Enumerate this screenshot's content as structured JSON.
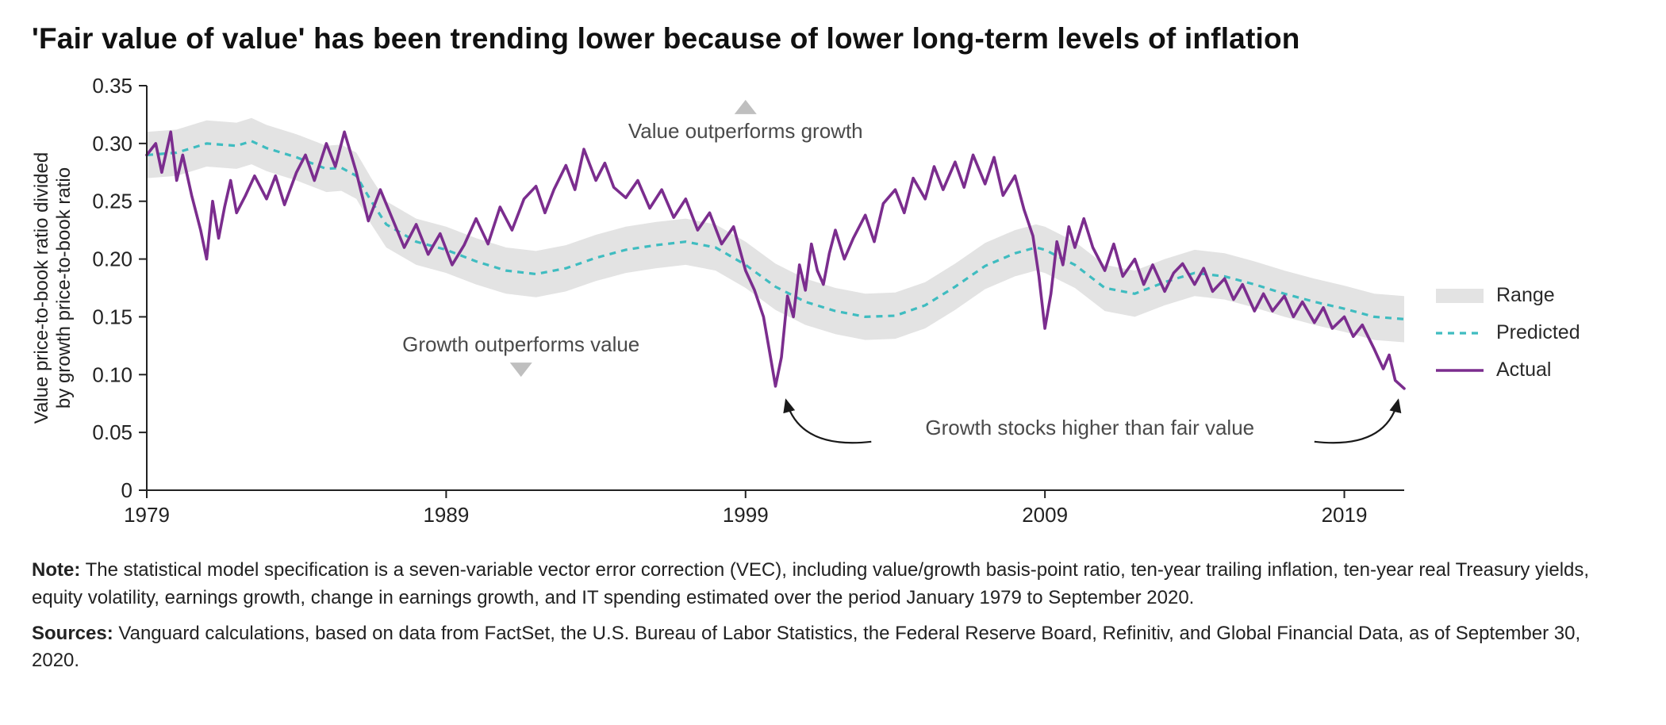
{
  "title": "'Fair value of value' has been trending lower because of lower long-term levels of inflation",
  "ylabel_line1": "Value price-to-book ratio divided",
  "ylabel_line2": "by growth price-to-book ratio",
  "annotations": {
    "top": "Value outperforms growth",
    "bottom": "Growth outperforms value",
    "callout": "Growth stocks higher than fair value"
  },
  "legend": {
    "range": "Range",
    "predicted": "Predicted",
    "actual": "Actual"
  },
  "note_lead": "Note:",
  "note_text": " The statistical model specification is a seven-variable vector error correction (VEC), including value/growth basis-point ratio, ten-year trailing inflation, ten-year real Treasury yields, equity volatility, earnings growth, change in earnings growth, and IT spending estimated over the period January 1979 to September 2020.",
  "sources_lead": "Sources:",
  "sources_text": " Vanguard calculations, based on data from FactSet, the U.S. Bureau of Labor Statistics, the Federal Reserve Board, Refinitiv, and Global Financial Data, as of September 30, 2020.",
  "chart": {
    "type": "line",
    "x_domain": [
      1979,
      2021
    ],
    "y_domain": [
      0,
      0.35
    ],
    "x_ticks": [
      1979,
      1989,
      1999,
      2009,
      2019
    ],
    "y_ticks": [
      0,
      0.05,
      0.1,
      0.15,
      0.2,
      0.25,
      0.3,
      0.35
    ],
    "colors": {
      "background": "#ffffff",
      "axis": "#222222",
      "tick_text": "#222222",
      "range_fill": "#e3e3e3",
      "predicted_stroke": "#3fbcc0",
      "actual_stroke": "#7b2d8e",
      "annotation_text": "#4a4a4a",
      "triangle": "#bfbfbf",
      "arrow": "#1a1a1a"
    },
    "line_widths": {
      "predicted": 3.2,
      "actual": 3.6,
      "axis": 2
    },
    "predicted_dash": "8 7",
    "axis_fontsize": 26,
    "ylabel_fontsize": 24,
    "annotation_fontsize": 26,
    "predicted": [
      [
        1979,
        0.29
      ],
      [
        1980,
        0.292
      ],
      [
        1981,
        0.3
      ],
      [
        1982,
        0.298
      ],
      [
        1982.5,
        0.302
      ],
      [
        1983,
        0.296
      ],
      [
        1984,
        0.288
      ],
      [
        1985,
        0.278
      ],
      [
        1985.5,
        0.279
      ],
      [
        1986,
        0.272
      ],
      [
        1986.5,
        0.25
      ],
      [
        1987,
        0.23
      ],
      [
        1988,
        0.215
      ],
      [
        1989,
        0.208
      ],
      [
        1990,
        0.198
      ],
      [
        1991,
        0.19
      ],
      [
        1992,
        0.187
      ],
      [
        1993,
        0.192
      ],
      [
        1994,
        0.201
      ],
      [
        1995,
        0.208
      ],
      [
        1996,
        0.212
      ],
      [
        1997,
        0.215
      ],
      [
        1998,
        0.21
      ],
      [
        1999,
        0.195
      ],
      [
        2000,
        0.176
      ],
      [
        2001,
        0.163
      ],
      [
        2002,
        0.155
      ],
      [
        2003,
        0.15
      ],
      [
        2004,
        0.151
      ],
      [
        2005,
        0.16
      ],
      [
        2006,
        0.176
      ],
      [
        2007,
        0.194
      ],
      [
        2008,
        0.205
      ],
      [
        2008.7,
        0.21
      ],
      [
        2009,
        0.208
      ],
      [
        2010,
        0.195
      ],
      [
        2011,
        0.175
      ],
      [
        2012,
        0.17
      ],
      [
        2013,
        0.18
      ],
      [
        2014,
        0.188
      ],
      [
        2015,
        0.185
      ],
      [
        2016,
        0.178
      ],
      [
        2017,
        0.17
      ],
      [
        2018,
        0.163
      ],
      [
        2019,
        0.157
      ],
      [
        2020,
        0.15
      ],
      [
        2021,
        0.148
      ]
    ],
    "range_half_width": 0.02,
    "actual": [
      [
        1979,
        0.29
      ],
      [
        1979.3,
        0.3
      ],
      [
        1979.5,
        0.275
      ],
      [
        1979.8,
        0.31
      ],
      [
        1980.0,
        0.268
      ],
      [
        1980.2,
        0.29
      ],
      [
        1980.5,
        0.255
      ],
      [
        1980.8,
        0.225
      ],
      [
        1981.0,
        0.2
      ],
      [
        1981.2,
        0.25
      ],
      [
        1981.4,
        0.218
      ],
      [
        1981.6,
        0.245
      ],
      [
        1981.8,
        0.268
      ],
      [
        1982.0,
        0.24
      ],
      [
        1982.3,
        0.255
      ],
      [
        1982.6,
        0.272
      ],
      [
        1983.0,
        0.252
      ],
      [
        1983.3,
        0.272
      ],
      [
        1983.6,
        0.247
      ],
      [
        1984.0,
        0.275
      ],
      [
        1984.3,
        0.29
      ],
      [
        1984.6,
        0.268
      ],
      [
        1985.0,
        0.3
      ],
      [
        1985.3,
        0.28
      ],
      [
        1985.6,
        0.31
      ],
      [
        1986.0,
        0.275
      ],
      [
        1986.4,
        0.233
      ],
      [
        1986.8,
        0.26
      ],
      [
        1987.2,
        0.235
      ],
      [
        1987.6,
        0.21
      ],
      [
        1988.0,
        0.23
      ],
      [
        1988.4,
        0.204
      ],
      [
        1988.8,
        0.222
      ],
      [
        1989.2,
        0.195
      ],
      [
        1989.6,
        0.212
      ],
      [
        1990.0,
        0.235
      ],
      [
        1990.4,
        0.213
      ],
      [
        1990.8,
        0.245
      ],
      [
        1991.2,
        0.225
      ],
      [
        1991.6,
        0.252
      ],
      [
        1992.0,
        0.263
      ],
      [
        1992.3,
        0.24
      ],
      [
        1992.6,
        0.26
      ],
      [
        1993.0,
        0.281
      ],
      [
        1993.3,
        0.26
      ],
      [
        1993.6,
        0.295
      ],
      [
        1994.0,
        0.268
      ],
      [
        1994.3,
        0.283
      ],
      [
        1994.6,
        0.262
      ],
      [
        1995.0,
        0.253
      ],
      [
        1995.4,
        0.268
      ],
      [
        1995.8,
        0.244
      ],
      [
        1996.2,
        0.26
      ],
      [
        1996.6,
        0.236
      ],
      [
        1997.0,
        0.252
      ],
      [
        1997.4,
        0.225
      ],
      [
        1997.8,
        0.24
      ],
      [
        1998.2,
        0.213
      ],
      [
        1998.6,
        0.228
      ],
      [
        1999.0,
        0.19
      ],
      [
        1999.3,
        0.173
      ],
      [
        1999.6,
        0.15
      ],
      [
        1999.8,
        0.12
      ],
      [
        2000.0,
        0.09
      ],
      [
        2000.2,
        0.115
      ],
      [
        2000.4,
        0.168
      ],
      [
        2000.6,
        0.15
      ],
      [
        2000.8,
        0.195
      ],
      [
        2001.0,
        0.173
      ],
      [
        2001.2,
        0.213
      ],
      [
        2001.4,
        0.19
      ],
      [
        2001.6,
        0.178
      ],
      [
        2001.8,
        0.205
      ],
      [
        2002.0,
        0.225
      ],
      [
        2002.3,
        0.2
      ],
      [
        2002.6,
        0.218
      ],
      [
        2003.0,
        0.238
      ],
      [
        2003.3,
        0.215
      ],
      [
        2003.6,
        0.248
      ],
      [
        2004.0,
        0.26
      ],
      [
        2004.3,
        0.24
      ],
      [
        2004.6,
        0.27
      ],
      [
        2005.0,
        0.252
      ],
      [
        2005.3,
        0.28
      ],
      [
        2005.6,
        0.26
      ],
      [
        2006.0,
        0.284
      ],
      [
        2006.3,
        0.262
      ],
      [
        2006.6,
        0.29
      ],
      [
        2007.0,
        0.265
      ],
      [
        2007.3,
        0.288
      ],
      [
        2007.6,
        0.255
      ],
      [
        2008.0,
        0.272
      ],
      [
        2008.3,
        0.243
      ],
      [
        2008.6,
        0.22
      ],
      [
        2008.8,
        0.185
      ],
      [
        2009.0,
        0.14
      ],
      [
        2009.2,
        0.17
      ],
      [
        2009.4,
        0.215
      ],
      [
        2009.6,
        0.195
      ],
      [
        2009.8,
        0.228
      ],
      [
        2010.0,
        0.21
      ],
      [
        2010.3,
        0.235
      ],
      [
        2010.6,
        0.21
      ],
      [
        2011.0,
        0.19
      ],
      [
        2011.3,
        0.213
      ],
      [
        2011.6,
        0.185
      ],
      [
        2012.0,
        0.2
      ],
      [
        2012.3,
        0.178
      ],
      [
        2012.6,
        0.195
      ],
      [
        2013.0,
        0.172
      ],
      [
        2013.3,
        0.188
      ],
      [
        2013.6,
        0.196
      ],
      [
        2014.0,
        0.178
      ],
      [
        2014.3,
        0.192
      ],
      [
        2014.6,
        0.172
      ],
      [
        2015.0,
        0.183
      ],
      [
        2015.3,
        0.165
      ],
      [
        2015.6,
        0.178
      ],
      [
        2016.0,
        0.155
      ],
      [
        2016.3,
        0.17
      ],
      [
        2016.6,
        0.155
      ],
      [
        2017.0,
        0.168
      ],
      [
        2017.3,
        0.15
      ],
      [
        2017.6,
        0.163
      ],
      [
        2018.0,
        0.145
      ],
      [
        2018.3,
        0.158
      ],
      [
        2018.6,
        0.14
      ],
      [
        2019.0,
        0.15
      ],
      [
        2019.3,
        0.133
      ],
      [
        2019.6,
        0.143
      ],
      [
        2020.0,
        0.122
      ],
      [
        2020.3,
        0.105
      ],
      [
        2020.5,
        0.117
      ],
      [
        2020.7,
        0.095
      ],
      [
        2021.0,
        0.088
      ]
    ]
  }
}
